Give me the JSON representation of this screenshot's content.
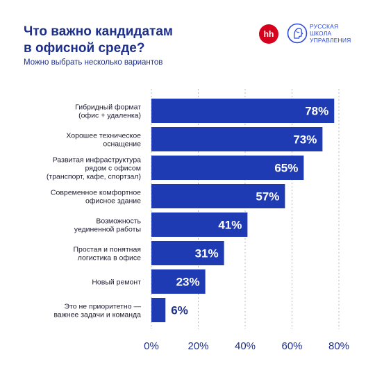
{
  "header": {
    "title_lines": [
      "Что важно кандидатам",
      "в офисной среде?"
    ],
    "subtitle": "Можно выбрать несколько вариантов"
  },
  "logos": {
    "hh": "hh",
    "school_lines": [
      "РУССКАЯ",
      "ШКОЛА",
      "УПРАВЛЕНИЯ"
    ],
    "school_icon": "stylized-head-profile-icon"
  },
  "colors": {
    "bar": "#1f3bb3",
    "text": "#1d2f8c",
    "grid": "#b9b9b9",
    "hh_red": "#d6001c",
    "school_blue": "#2b49d9"
  },
  "chart_data": {
    "type": "bar",
    "orientation": "horizontal",
    "categories": [
      [
        "Гибридный формат",
        "(офис + удаленка)"
      ],
      [
        "Хорошее техническое",
        "оснащение"
      ],
      [
        "Развитая инфраструктура",
        "рядом с офисом",
        "(транспорт, кафе, спортзал)"
      ],
      [
        "Современное комфортное",
        "офисное здание"
      ],
      [
        "Возможность",
        "уединенной работы"
      ],
      [
        "Простая и понятная",
        "логистика в офисе"
      ],
      [
        "Новый ремонт"
      ],
      [
        "Это не приоритетно —",
        "важнее задачи и команда"
      ]
    ],
    "values": [
      78,
      73,
      65,
      57,
      41,
      31,
      23,
      6
    ],
    "value_labels": [
      "78%",
      "73%",
      "65%",
      "57%",
      "41%",
      "31%",
      "23%",
      "6%"
    ],
    "x_ticks": [
      0,
      20,
      40,
      60,
      80
    ],
    "x_tick_labels": [
      "0%",
      "20%",
      "40%",
      "60%",
      "80%"
    ],
    "xlim": [
      0,
      80
    ],
    "grid": true,
    "legend": "none"
  }
}
